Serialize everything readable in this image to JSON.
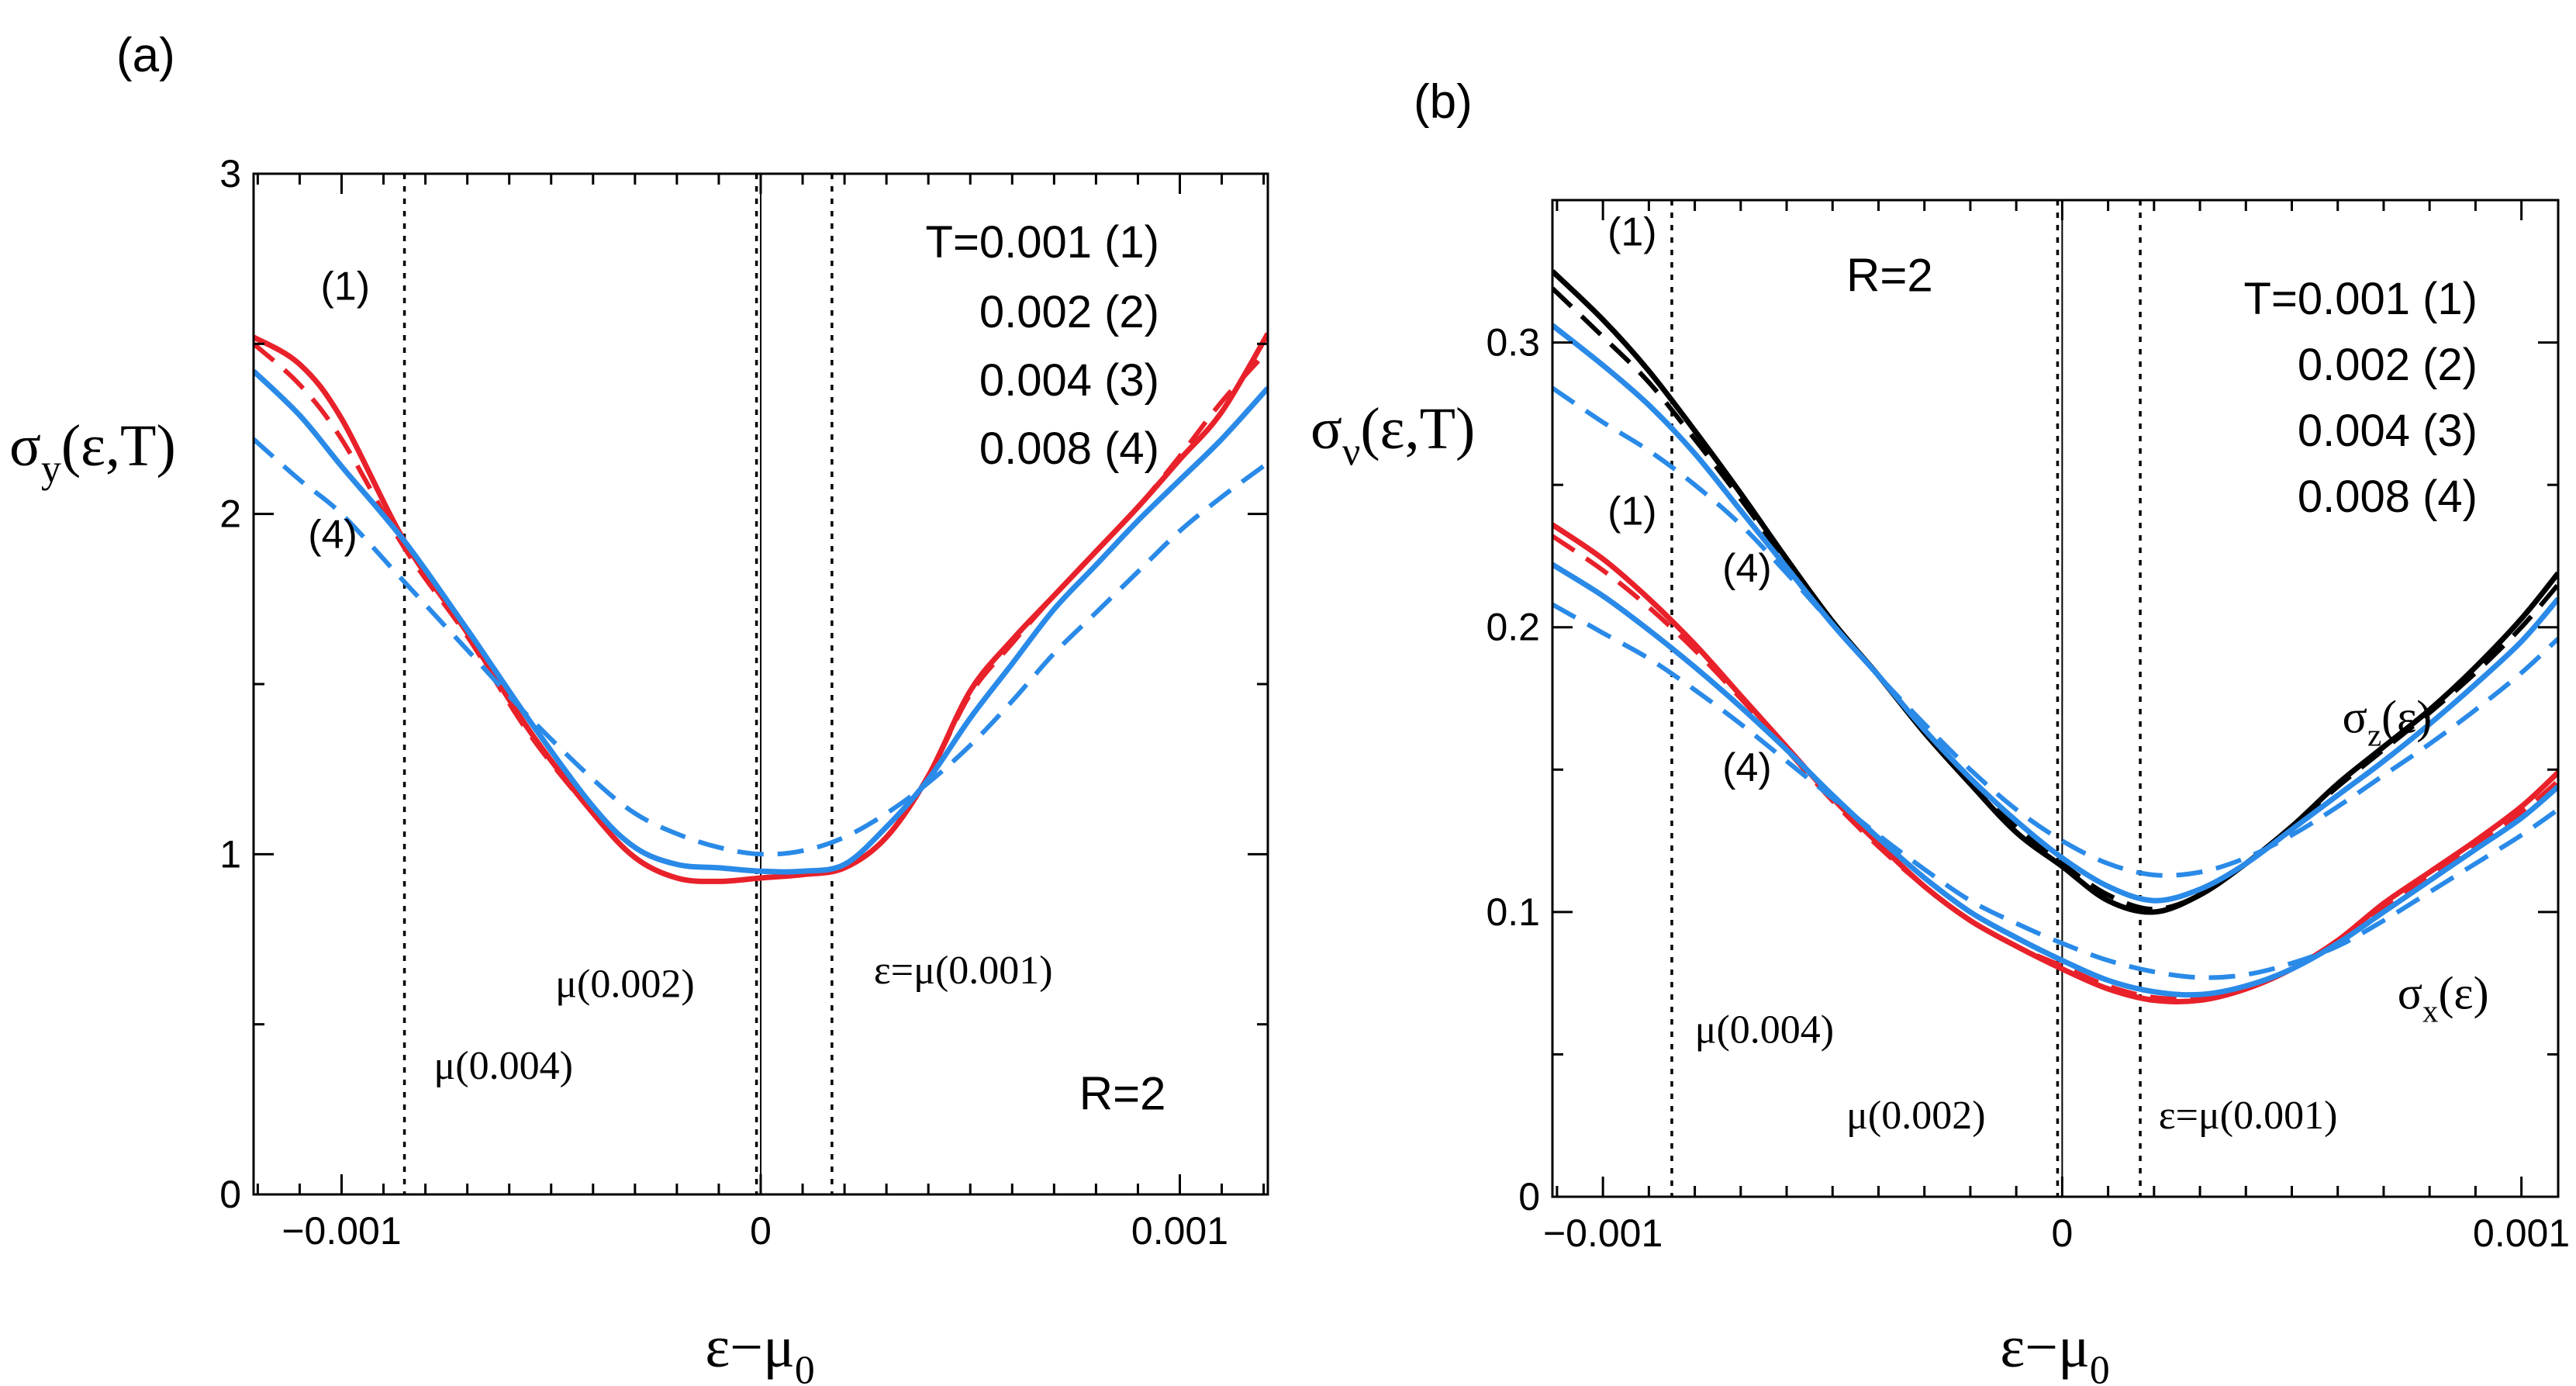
{
  "chart_data": [
    {
      "panel": "(a)",
      "type": "line",
      "xlabel_main": "ε−μ",
      "xlabel_sub": "0",
      "ylabel_pre": "σ",
      "ylabel_sub": "y",
      "ylabel_post": "(ε,T)",
      "xlim": [
        -0.00121,
        0.00121
      ],
      "ylim": [
        0,
        3
      ],
      "x_ticks": [
        -0.001,
        0,
        0.001
      ],
      "x_tick_labels": [
        "−0.001",
        "0",
        "0.001"
      ],
      "y_ticks": [
        0,
        1,
        2,
        3
      ],
      "y_tick_labels": [
        "0",
        "1",
        "2",
        "3"
      ],
      "vlines": [
        {
          "x": -0.00085,
          "style": "dotted",
          "label": "μ(0.004)"
        },
        {
          "x": -1e-05,
          "style": "dotted",
          "label": "μ(0.002)"
        },
        {
          "x": 0.0,
          "style": "solid",
          "label": ""
        },
        {
          "x": 0.00017,
          "style": "dotted",
          "label": "ε=μ(0.001)"
        }
      ],
      "legend": {
        "lines": [
          "T=0.001 (1)",
          "0.002 (2)",
          "0.004 (3)",
          "0.008 (4)"
        ],
        "position": "top-right"
      },
      "annotations": [
        {
          "text": "(1)",
          "x": -0.00105,
          "y": 2.63
        },
        {
          "text": "(4)",
          "x": -0.00108,
          "y": 1.9
        },
        {
          "text": "μ(0.004)",
          "x": -0.00078,
          "y": 0.34
        },
        {
          "text": "μ(0.002)",
          "x": -0.00049,
          "y": 0.58
        },
        {
          "text": "ε=μ(0.001)",
          "x": 0.00027,
          "y": 0.62
        },
        {
          "text": "R=2",
          "x": 0.00076,
          "y": 0.25
        }
      ],
      "series": [
        {
          "curve": "(1)",
          "color": "#e8212a",
          "style": "solid",
          "x": [
            -0.00121,
            -0.0011,
            -0.001,
            -0.00085,
            -0.0007,
            -0.00055,
            -0.0004,
            -0.0003,
            -0.0002,
            -0.0001,
            0.0,
            0.0001,
            0.0002,
            0.0003,
            0.0004,
            0.0005,
            0.0006,
            0.0007,
            0.0008,
            0.0009,
            0.001,
            0.0011,
            0.00121
          ],
          "values": [
            2.52,
            2.44,
            2.28,
            1.92,
            1.65,
            1.36,
            1.12,
            0.99,
            0.93,
            0.92,
            0.93,
            0.94,
            0.96,
            1.05,
            1.23,
            1.48,
            1.63,
            1.76,
            1.89,
            2.02,
            2.16,
            2.3,
            2.53
          ]
        },
        {
          "curve": "(2)",
          "color": "#e8212a",
          "style": "dashed",
          "x": [
            -0.00121,
            -0.0011,
            -0.001,
            -0.00085,
            -0.0007,
            -0.00055,
            -0.0004,
            -0.0003,
            -0.0002,
            -0.0001,
            0.0,
            0.0001,
            0.0002,
            0.0003,
            0.0004,
            0.0005,
            0.0006,
            0.0007,
            0.0008,
            0.0009,
            0.001,
            0.0011,
            0.00121
          ],
          "values": [
            2.5,
            2.38,
            2.22,
            1.9,
            1.64,
            1.35,
            1.12,
            0.99,
            0.93,
            0.92,
            0.93,
            0.94,
            0.96,
            1.05,
            1.23,
            1.47,
            1.62,
            1.76,
            1.89,
            2.02,
            2.17,
            2.33,
            2.48
          ]
        },
        {
          "curve": "(3)",
          "color": "#2a8ae8",
          "style": "solid",
          "x": [
            -0.00121,
            -0.0011,
            -0.001,
            -0.00085,
            -0.0007,
            -0.00055,
            -0.0004,
            -0.0003,
            -0.0002,
            -0.0001,
            0.0,
            0.0001,
            0.0002,
            0.0003,
            0.0004,
            0.0005,
            0.0006,
            0.0007,
            0.0008,
            0.0009,
            0.001,
            0.0011,
            0.00121
          ],
          "values": [
            2.42,
            2.29,
            2.14,
            1.92,
            1.66,
            1.39,
            1.14,
            1.02,
            0.97,
            0.96,
            0.95,
            0.95,
            0.97,
            1.08,
            1.22,
            1.4,
            1.56,
            1.72,
            1.85,
            1.98,
            2.1,
            2.22,
            2.37
          ]
        },
        {
          "curve": "(4)",
          "color": "#2a8ae8",
          "style": "dashed",
          "x": [
            -0.00121,
            -0.0011,
            -0.001,
            -0.00085,
            -0.0007,
            -0.00055,
            -0.0004,
            -0.0003,
            -0.0002,
            -0.0001,
            0.0,
            0.0001,
            0.0002,
            0.0003,
            0.0004,
            0.0005,
            0.0006,
            0.0007,
            0.0008,
            0.0009,
            0.001,
            0.0011,
            0.00121
          ],
          "values": [
            2.22,
            2.1,
            2.0,
            1.8,
            1.6,
            1.4,
            1.22,
            1.12,
            1.06,
            1.02,
            1.0,
            1.01,
            1.05,
            1.12,
            1.21,
            1.32,
            1.45,
            1.59,
            1.71,
            1.83,
            1.95,
            2.05,
            2.15
          ]
        }
      ]
    },
    {
      "panel": "(b)",
      "type": "line",
      "xlabel_main": "ε−μ",
      "xlabel_sub": "0",
      "ylabel_pre": "σ",
      "ylabel_sub": "ν",
      "ylabel_post": "(ε,T)",
      "xlim": [
        -0.00111,
        0.00108
      ],
      "ylim": [
        0,
        0.35
      ],
      "x_ticks": [
        -0.001,
        0,
        0.001
      ],
      "x_tick_labels": [
        "−0.001",
        "0",
        "0.001"
      ],
      "y_ticks": [
        0,
        0.1,
        0.2,
        0.3
      ],
      "y_tick_labels": [
        "0",
        "0.1",
        "0.2",
        "0.3"
      ],
      "vlines": [
        {
          "x": -0.00085,
          "style": "dotted",
          "label": "μ(0.004)"
        },
        {
          "x": -1e-05,
          "style": "dotted",
          "label": "μ(0.002)"
        },
        {
          "x": 0.0,
          "style": "solid",
          "label": ""
        },
        {
          "x": 0.00017,
          "style": "dotted",
          "label": "ε=μ(0.001)"
        }
      ],
      "legend": {
        "lines": [
          "T=0.001 (1)",
          "0.002 (2)",
          "0.004 (3)",
          "0.008 (4)"
        ],
        "position": "top-right"
      },
      "annotations": [
        {
          "text": "(1)",
          "x": -0.00099,
          "y": 0.334
        },
        {
          "text": "(1)",
          "x": -0.00099,
          "y": 0.236
        },
        {
          "text": "(4)",
          "x": -0.00074,
          "y": 0.216
        },
        {
          "text": "(4)",
          "x": -0.00074,
          "y": 0.146
        },
        {
          "text": "R=2",
          "x": -0.00047,
          "y": 0.318
        },
        {
          "text": "μ(0.004)",
          "x": -0.0008,
          "y": 0.054
        },
        {
          "text": "μ(0.002)",
          "x": -0.00047,
          "y": 0.024
        },
        {
          "text": "ε=μ(0.001)",
          "x": 0.00021,
          "y": 0.024
        }
      ],
      "curve_labels": [
        {
          "pre": "σ",
          "sub": "z",
          "post": "(ε)",
          "x": 0.00061,
          "y": 0.163
        },
        {
          "pre": "σ",
          "sub": "x",
          "post": "(ε)",
          "x": 0.00073,
          "y": 0.066
        }
      ],
      "series": [
        {
          "curve": "σz (1)",
          "color": "#000000",
          "style": "solid",
          "x": [
            -0.00111,
            -0.001,
            -0.0009,
            -0.0008,
            -0.0007,
            -0.0006,
            -0.0005,
            -0.0004,
            -0.0003,
            -0.0002,
            -0.0001,
            0.0,
            0.0001,
            0.0002,
            0.0003,
            0.0004,
            0.0005,
            0.0006,
            0.0007,
            0.0008,
            0.0009,
            0.001,
            0.00108
          ],
          "values": [
            0.325,
            0.308,
            0.29,
            0.269,
            0.247,
            0.224,
            0.202,
            0.183,
            0.163,
            0.145,
            0.128,
            0.116,
            0.104,
            0.1,
            0.106,
            0.117,
            0.13,
            0.145,
            0.158,
            0.171,
            0.186,
            0.203,
            0.219
          ]
        },
        {
          "curve": "σz (2)",
          "color": "#000000",
          "style": "dashed",
          "x": [
            -0.00111,
            -0.001,
            -0.0009,
            -0.0008,
            -0.0007,
            -0.0006,
            -0.0005,
            -0.0004,
            -0.0003,
            -0.0002,
            -0.0001,
            0.0,
            0.0001,
            0.0002,
            0.0003,
            0.0004,
            0.0005,
            0.0006,
            0.0007,
            0.0008,
            0.0009,
            0.001,
            0.00108
          ],
          "values": [
            0.319,
            0.302,
            0.286,
            0.266,
            0.245,
            0.223,
            0.202,
            0.183,
            0.164,
            0.146,
            0.13,
            0.117,
            0.106,
            0.101,
            0.106,
            0.117,
            0.13,
            0.144,
            0.157,
            0.17,
            0.184,
            0.2,
            0.215
          ]
        },
        {
          "curve": "σz (3)",
          "color": "#2a8ae8",
          "style": "solid",
          "x": [
            -0.00111,
            -0.001,
            -0.0009,
            -0.0008,
            -0.0007,
            -0.0006,
            -0.0005,
            -0.0004,
            -0.0003,
            -0.0002,
            -0.0001,
            0.0,
            0.0001,
            0.0002,
            0.0003,
            0.0004,
            0.0005,
            0.0006,
            0.0007,
            0.0008,
            0.0009,
            0.001,
            0.00108
          ],
          "values": [
            0.306,
            0.292,
            0.278,
            0.261,
            0.241,
            0.221,
            0.201,
            0.183,
            0.164,
            0.147,
            0.132,
            0.119,
            0.109,
            0.104,
            0.108,
            0.117,
            0.129,
            0.141,
            0.153,
            0.166,
            0.18,
            0.195,
            0.21
          ]
        },
        {
          "curve": "σz (4)",
          "color": "#2a8ae8",
          "style": "dashed",
          "x": [
            -0.00111,
            -0.001,
            -0.0009,
            -0.0008,
            -0.0007,
            -0.0006,
            -0.0005,
            -0.0004,
            -0.0003,
            -0.0002,
            -0.0001,
            0.0,
            0.0001,
            0.0002,
            0.0003,
            0.0004,
            0.0005,
            0.0006,
            0.0007,
            0.0008,
            0.0009,
            0.001,
            0.00108
          ],
          "values": [
            0.284,
            0.272,
            0.262,
            0.25,
            0.236,
            0.219,
            0.201,
            0.183,
            0.166,
            0.15,
            0.136,
            0.125,
            0.117,
            0.113,
            0.114,
            0.119,
            0.127,
            0.137,
            0.148,
            0.159,
            0.171,
            0.184,
            0.196
          ]
        },
        {
          "curve": "σx (1)",
          "color": "#e8212a",
          "style": "solid",
          "x": [
            -0.00111,
            -0.001,
            -0.0009,
            -0.0008,
            -0.0007,
            -0.0006,
            -0.0005,
            -0.0004,
            -0.0003,
            -0.0002,
            -0.0001,
            0.0,
            0.0001,
            0.0002,
            0.0003,
            0.0004,
            0.0005,
            0.0006,
            0.0007,
            0.0008,
            0.0009,
            0.001,
            0.00108
          ],
          "values": [
            0.236,
            0.224,
            0.21,
            0.194,
            0.176,
            0.158,
            0.14,
            0.124,
            0.109,
            0.097,
            0.088,
            0.08,
            0.073,
            0.069,
            0.069,
            0.073,
            0.08,
            0.09,
            0.103,
            0.114,
            0.125,
            0.137,
            0.149
          ]
        },
        {
          "curve": "σx (2)",
          "color": "#e8212a",
          "style": "dashed",
          "x": [
            -0.00111,
            -0.001,
            -0.0009,
            -0.0008,
            -0.0007,
            -0.0006,
            -0.0005,
            -0.0004,
            -0.0003,
            -0.0002,
            -0.0001,
            0.0,
            0.0001,
            0.0002,
            0.0003,
            0.0004,
            0.0005,
            0.0006,
            0.0007,
            0.0008,
            0.0009,
            0.001,
            0.00108
          ],
          "values": [
            0.232,
            0.22,
            0.207,
            0.192,
            0.175,
            0.157,
            0.139,
            0.123,
            0.109,
            0.097,
            0.088,
            0.081,
            0.074,
            0.07,
            0.07,
            0.074,
            0.08,
            0.09,
            0.102,
            0.113,
            0.124,
            0.135,
            0.146
          ]
        },
        {
          "curve": "σx (3)",
          "color": "#2a8ae8",
          "style": "solid",
          "x": [
            -0.00111,
            -0.001,
            -0.0009,
            -0.0008,
            -0.0007,
            -0.0006,
            -0.0005,
            -0.0004,
            -0.0003,
            -0.0002,
            -0.0001,
            0.0,
            0.0001,
            0.0002,
            0.0003,
            0.0004,
            0.0005,
            0.0006,
            0.0007,
            0.0008,
            0.0009,
            0.001,
            0.00108
          ],
          "values": [
            0.222,
            0.211,
            0.199,
            0.186,
            0.172,
            0.157,
            0.141,
            0.126,
            0.112,
            0.1,
            0.091,
            0.083,
            0.076,
            0.072,
            0.071,
            0.074,
            0.08,
            0.089,
            0.1,
            0.111,
            0.122,
            0.133,
            0.144
          ]
        },
        {
          "curve": "σx (4)",
          "color": "#2a8ae8",
          "style": "dashed",
          "x": [
            -0.00111,
            -0.001,
            -0.0009,
            -0.0008,
            -0.0007,
            -0.0006,
            -0.0005,
            -0.0004,
            -0.0003,
            -0.0002,
            -0.0001,
            0.0,
            0.0001,
            0.0002,
            0.0003,
            0.0004,
            0.0005,
            0.0006,
            0.0007,
            0.0008,
            0.0009,
            0.001,
            0.00108
          ],
          "values": [
            0.208,
            0.198,
            0.189,
            0.178,
            0.166,
            0.153,
            0.14,
            0.127,
            0.115,
            0.104,
            0.096,
            0.089,
            0.083,
            0.079,
            0.077,
            0.078,
            0.082,
            0.088,
            0.097,
            0.107,
            0.117,
            0.127,
            0.136
          ]
        }
      ]
    }
  ]
}
